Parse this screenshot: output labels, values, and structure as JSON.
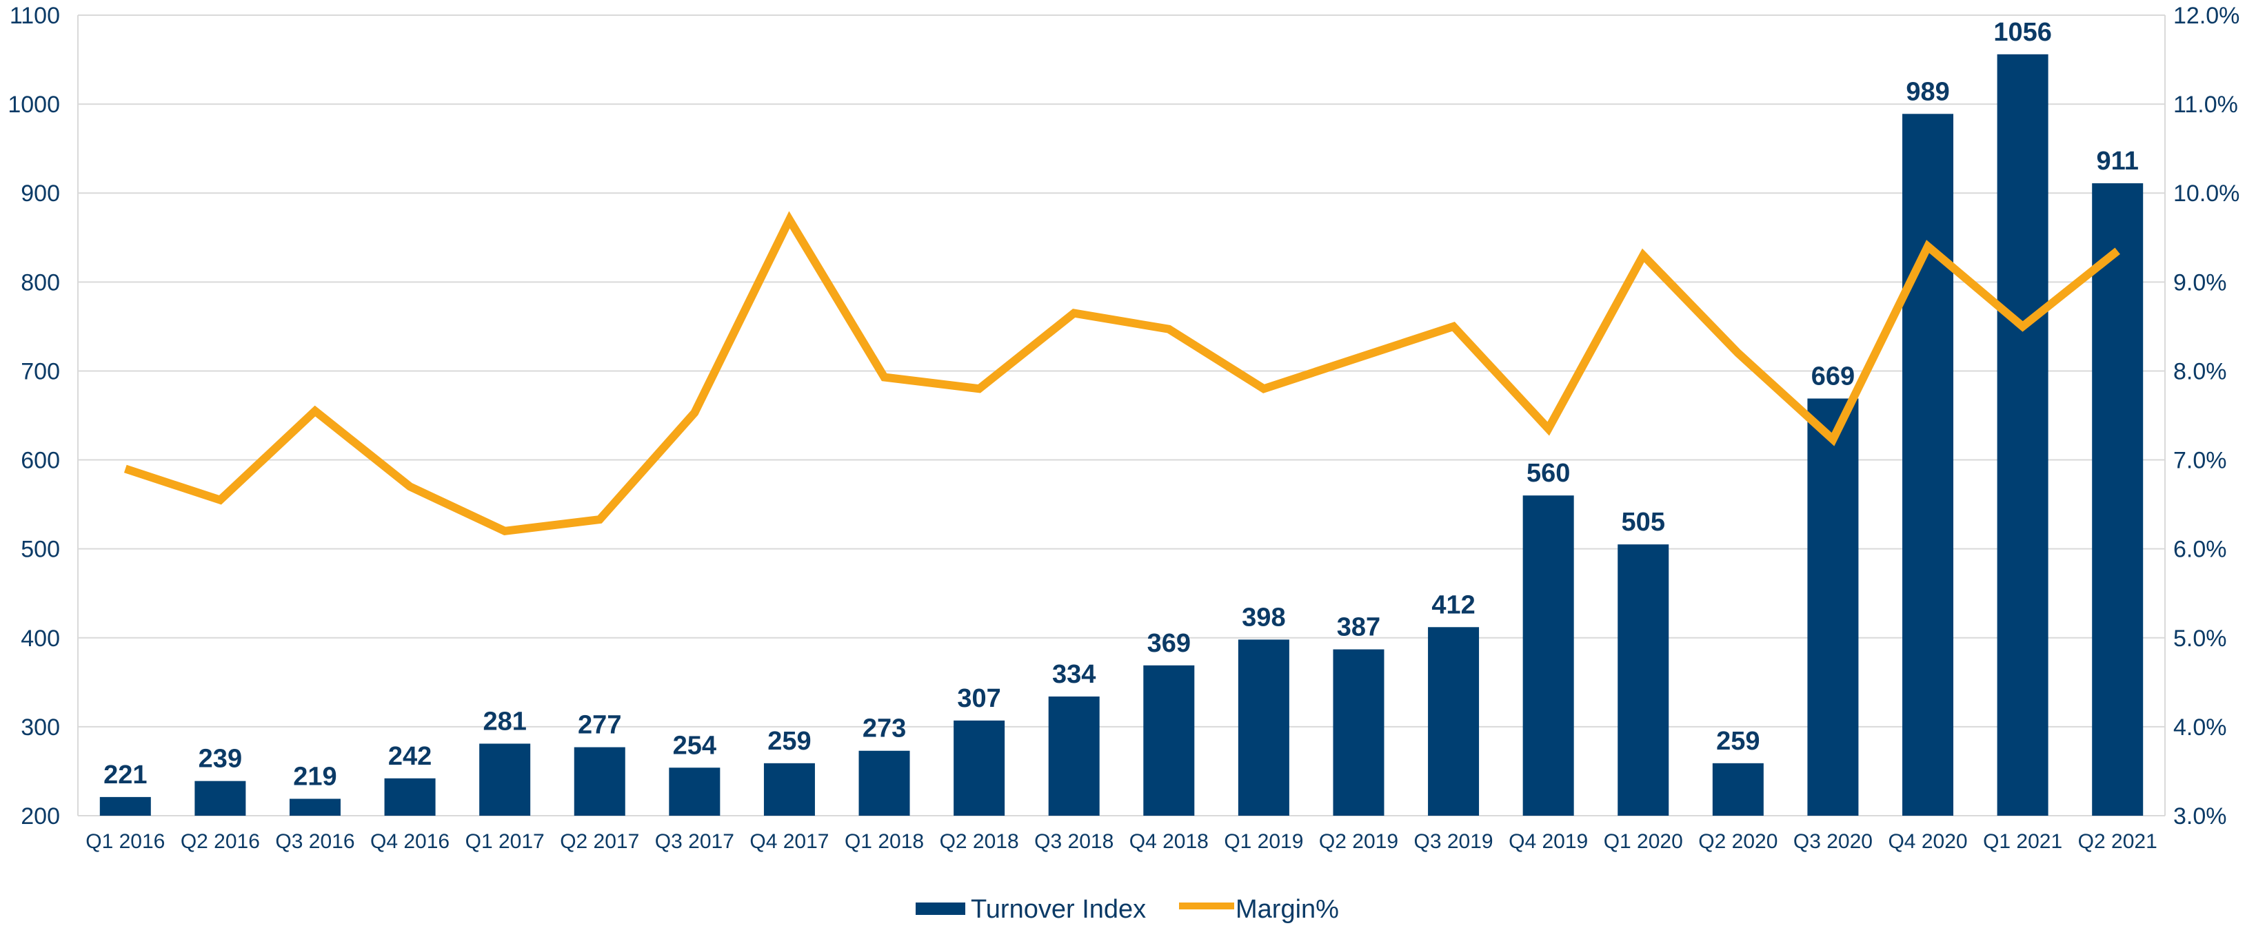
{
  "chart_data": {
    "type": "bar",
    "categories": [
      "Q1 2016",
      "Q2 2016",
      "Q3 2016",
      "Q4 2016",
      "Q1 2017",
      "Q2 2017",
      "Q3 2017",
      "Q4 2017",
      "Q1 2018",
      "Q2 2018",
      "Q3 2018",
      "Q4 2018",
      "Q1 2019",
      "Q2 2019",
      "Q3 2019",
      "Q4 2019",
      "Q1 2020",
      "Q2 2020",
      "Q3 2020",
      "Q4 2020",
      "Q1 2021",
      "Q2 2021"
    ],
    "series": [
      {
        "name": "Turnover Index",
        "type": "bar",
        "axis": "left",
        "color": "#003f72",
        "values": [
          221,
          239,
          219,
          242,
          281,
          277,
          254,
          259,
          273,
          307,
          334,
          369,
          398,
          387,
          412,
          560,
          505,
          259,
          669,
          989,
          1056,
          911
        ]
      },
      {
        "name": "Margin%",
        "type": "line",
        "axis": "right",
        "color": "#f7a618",
        "values": [
          6.9,
          6.55,
          7.55,
          6.7,
          6.2,
          6.33,
          7.53,
          9.7,
          7.93,
          7.8,
          8.65,
          8.47,
          7.8,
          8.15,
          8.5,
          7.35,
          9.3,
          8.2,
          7.23,
          9.4,
          8.5,
          9.35
        ]
      }
    ],
    "left_axis": {
      "ylim": [
        200,
        1100
      ],
      "ticks": [
        "200",
        "300",
        "400",
        "500",
        "600",
        "700",
        "800",
        "900",
        "1000",
        "1100"
      ]
    },
    "right_axis": {
      "ylim": [
        3.0,
        12.0
      ],
      "ticks": [
        "3.0%",
        "4.0%",
        "5.0%",
        "6.0%",
        "7.0%",
        "8.0%",
        "9.0%",
        "10.0%",
        "11.0%",
        "12.0%"
      ]
    },
    "grid": true,
    "legend": {
      "position": "bottom",
      "entries": [
        "Turnover Index",
        "Margin%"
      ]
    }
  }
}
